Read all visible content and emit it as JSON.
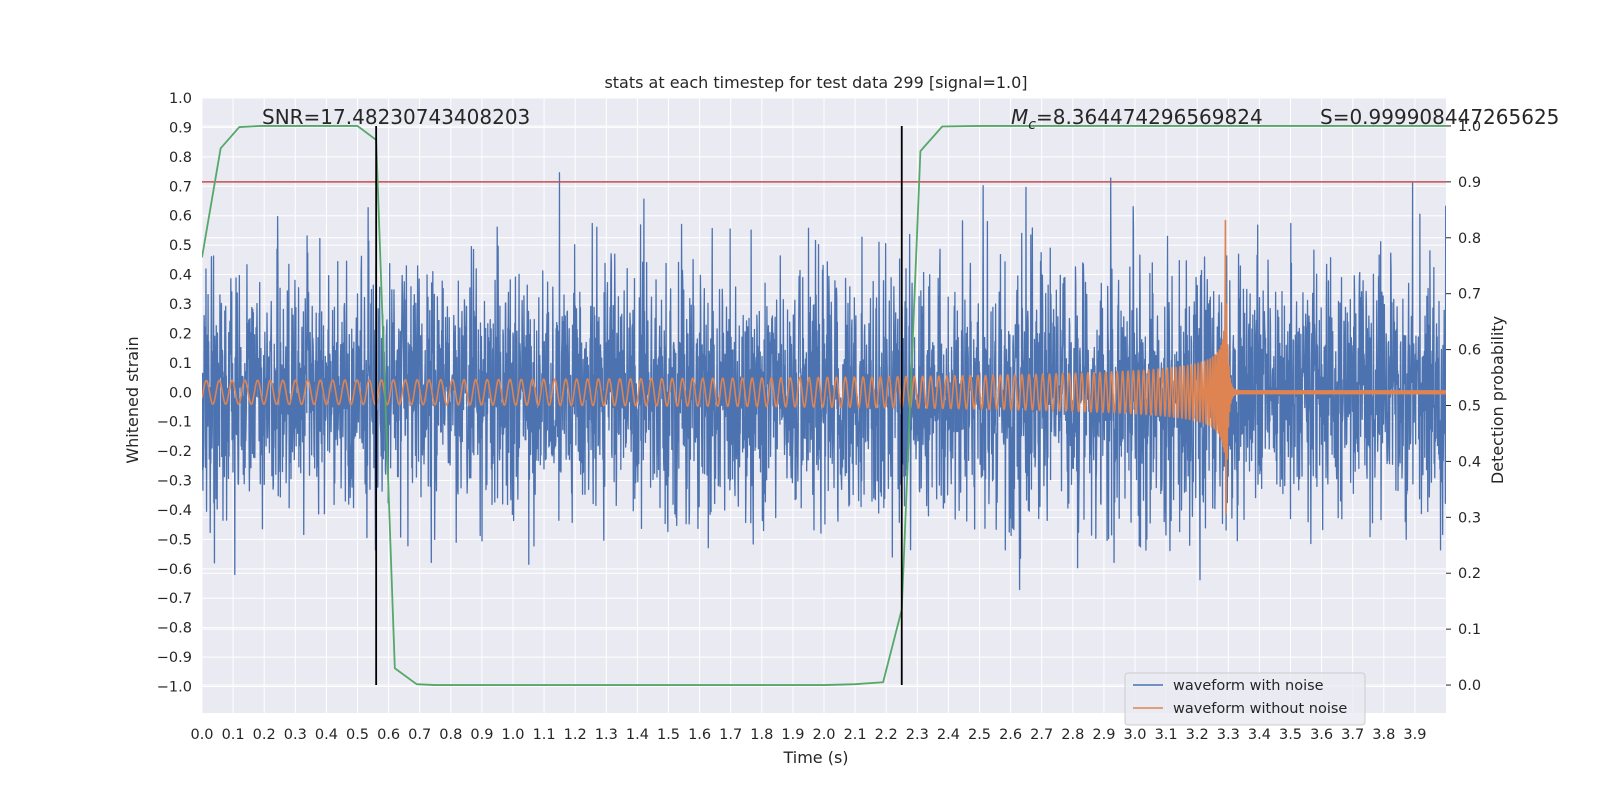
{
  "chart_data": {
    "type": "line",
    "title": "stats at each timestep for test data 299 [signal=1.0]",
    "xlabel": "Time (s)",
    "ylabel": "Whitened strain",
    "ylabel_right": "Detection probability",
    "xlim": [
      0.0,
      4.0
    ],
    "ylim": [
      -1.09,
      1.0
    ],
    "ylim_right": [
      -0.05,
      1.05
    ],
    "x_ticks": [
      "0.0",
      "0.1",
      "0.2",
      "0.3",
      "0.4",
      "0.5",
      "0.6",
      "0.7",
      "0.8",
      "0.9",
      "1.0",
      "1.1",
      "1.2",
      "1.3",
      "1.4",
      "1.5",
      "1.6",
      "1.7",
      "1.8",
      "1.9",
      "2.0",
      "2.1",
      "2.2",
      "2.3",
      "2.4",
      "2.5",
      "2.6",
      "2.7",
      "2.8",
      "2.9",
      "3.0",
      "3.1",
      "3.2",
      "3.3",
      "3.4",
      "3.5",
      "3.6",
      "3.7",
      "3.8",
      "3.9"
    ],
    "y_ticks": [
      "1.0",
      "0.9",
      "0.8",
      "0.7",
      "0.6",
      "0.5",
      "0.4",
      "0.3",
      "0.2",
      "0.1",
      "0.0",
      "−0.1",
      "−0.2",
      "−0.3",
      "−0.4",
      "−0.5",
      "−0.6",
      "−0.7",
      "−0.8",
      "−0.9",
      "−1.0"
    ],
    "y_right_ticks": [
      "1.0",
      "0.9",
      "0.8",
      "0.7",
      "0.6",
      "0.5",
      "0.4",
      "0.3",
      "0.2",
      "0.1",
      "0.0"
    ],
    "annotations": {
      "snr": "SNR=17.48230743408203",
      "mc_symbol": "M",
      "mc_sub": "c",
      "mc_value": "=8.364474296569824",
      "s": "S=0.999908447265625"
    },
    "legend": {
      "placement": "lower-right",
      "entries": [
        "waveform with noise",
        "waveform without noise"
      ]
    },
    "threshold_right": 0.9,
    "vertical_lines_x": [
      0.56,
      2.25
    ],
    "series": [
      {
        "name": "waveform with noise",
        "color": "#4c72b0",
        "kind": "noise",
        "duration": 4.0,
        "sample_rate": 1024,
        "std": 0.21,
        "merger_time": 3.29
      },
      {
        "name": "waveform without noise",
        "color": "#dd8452",
        "kind": "chirp",
        "merger_time": 3.29,
        "start_freq": 24,
        "start_amplitude": 0.04,
        "peak_amplitude": 0.65,
        "ringdown_amplitude": 0.005
      },
      {
        "name": "detection probability",
        "color": "#55a868",
        "axis": "right",
        "x": [
          0.0,
          0.06,
          0.12,
          0.19,
          0.5,
          0.56,
          0.62,
          0.69,
          0.75,
          1.0,
          1.5,
          2.0,
          2.1,
          2.19,
          2.25,
          2.31,
          2.38,
          2.5,
          3.0,
          3.5,
          4.0
        ],
        "y": [
          0.765,
          0.96,
          0.998,
          1.0,
          1.0,
          0.975,
          0.03,
          0.0015,
          0.0,
          0.0,
          0.0,
          0.0,
          0.0015,
          0.005,
          0.135,
          0.955,
          0.999,
          1.0,
          1.0,
          1.0,
          1.0
        ]
      }
    ],
    "colors": {
      "background": "#eaeaf2",
      "grid": "#ffffff",
      "threshold": "#c44e52",
      "vertical_line": "#000000"
    }
  }
}
